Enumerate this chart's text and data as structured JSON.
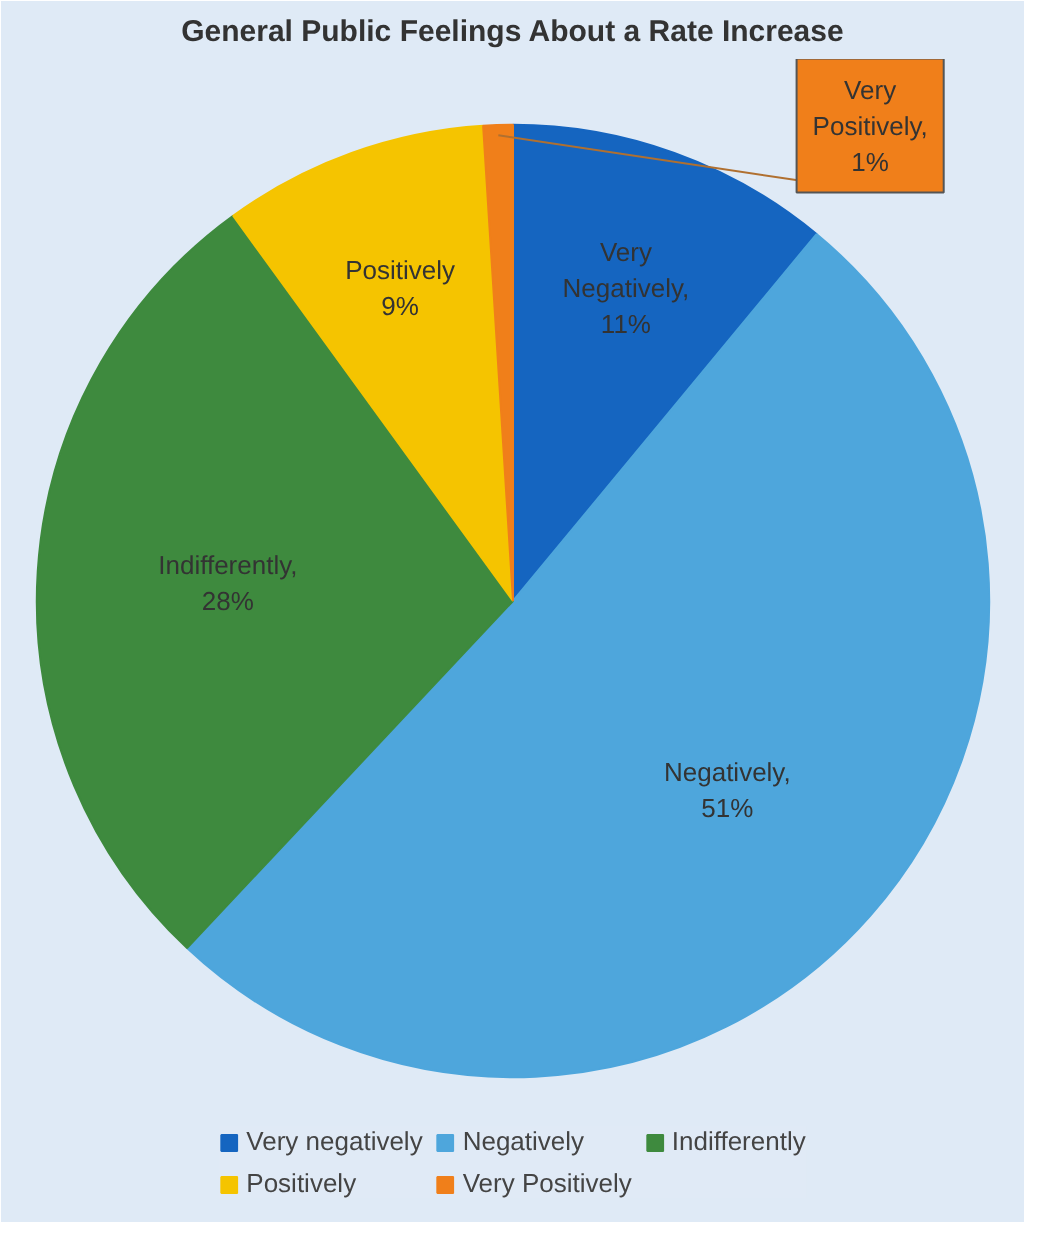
{
  "chart_data": {
    "type": "pie",
    "title": "General Public Feelings About a Rate Increase",
    "categories": [
      "Very negatively",
      "Negatively",
      "Indifferently",
      "Positively",
      "Very Positively"
    ],
    "values": [
      11,
      51,
      28,
      9,
      1
    ],
    "colors": [
      "#1565c0",
      "#4ea6dc",
      "#3e8a3e",
      "#f5c400",
      "#f07f1a"
    ],
    "value_labels": [
      "Very Negatively, 11%",
      "Negatively, 51%",
      "Indifferently, 28%",
      "Positively 9%",
      "Very Positively, 1%"
    ],
    "legend": "bottom"
  }
}
